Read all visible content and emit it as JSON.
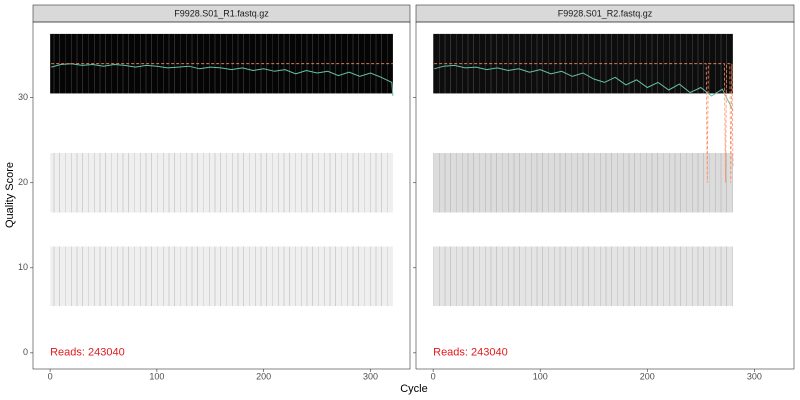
{
  "chart_data": [
    {
      "type": "line",
      "title": "F9928.S01_R1.fastq.gz",
      "x_label": "Cycle",
      "y_label": "Quality Score",
      "annotation": "Reads:  243040",
      "xlim": [
        -16,
        337
      ],
      "ylim": [
        -1.9,
        38.9
      ],
      "xticks": [
        0,
        100,
        200,
        300
      ],
      "yticks": [
        0,
        10,
        20,
        30
      ],
      "grid": false,
      "heatmap": [
        {
          "range": [
            30.5,
            37.5
          ],
          "color": "#050505"
        },
        {
          "range": [
            16.5,
            23.5
          ],
          "color": "#efefef"
        },
        {
          "range": [
            5.5,
            12.5
          ],
          "color": "#efefef"
        }
      ],
      "series": [
        {
          "color": "#66c2a5",
          "dashed": false,
          "x": [
            1,
            10,
            20,
            30,
            40,
            50,
            60,
            70,
            80,
            90,
            100,
            110,
            120,
            130,
            140,
            150,
            160,
            170,
            180,
            190,
            200,
            210,
            220,
            230,
            240,
            250,
            260,
            270,
            280,
            290,
            300,
            310,
            320,
            321
          ],
          "values": [
            33.6,
            33.9,
            34.0,
            33.8,
            33.9,
            33.7,
            33.9,
            33.8,
            33.6,
            33.8,
            33.7,
            33.5,
            33.6,
            33.7,
            33.4,
            33.6,
            33.5,
            33.3,
            33.5,
            33.2,
            33.4,
            33.1,
            33.3,
            32.8,
            33.2,
            32.9,
            33.1,
            32.6,
            33.0,
            32.5,
            32.9,
            32.4,
            31.8,
            30.2
          ]
        },
        {
          "color": "#fc8d62",
          "dashed": true,
          "x": [
            1,
            321
          ],
          "values": [
            34,
            34
          ]
        }
      ]
    },
    {
      "type": "line",
      "title": "F9928.S01_R2.fastq.gz",
      "annotation": "Reads:  243040",
      "xlim": [
        -16,
        337
      ],
      "ylim": [
        -1.9,
        38.9
      ],
      "xticks": [
        0,
        100,
        200,
        300
      ],
      "yticks": [
        0,
        10,
        20,
        30
      ],
      "grid": false,
      "heatmap": [
        {
          "range": [
            30.5,
            37.5
          ],
          "color": "#0d0d0d"
        },
        {
          "range": [
            16.5,
            23.5
          ],
          "color": "#dcdcdc"
        },
        {
          "range": [
            5.5,
            12.5
          ],
          "color": "#e4e4e4"
        }
      ],
      "series": [
        {
          "color": "#66c2a5",
          "dashed": false,
          "x": [
            1,
            10,
            20,
            30,
            40,
            50,
            60,
            70,
            80,
            90,
            100,
            110,
            120,
            130,
            140,
            150,
            160,
            170,
            180,
            190,
            200,
            210,
            220,
            230,
            240,
            250,
            260,
            270,
            280
          ],
          "values": [
            33.4,
            33.7,
            33.8,
            33.5,
            33.6,
            33.3,
            33.5,
            33.2,
            33.4,
            33.0,
            33.3,
            32.8,
            33.1,
            32.5,
            32.9,
            32.2,
            31.8,
            32.4,
            31.5,
            32.1,
            31.2,
            31.8,
            30.9,
            31.6,
            30.6,
            31.2,
            30.2,
            31.0,
            28.5
          ]
        },
        {
          "color": "#fc8d62",
          "dashed": true,
          "x": [
            1,
            255,
            256,
            257,
            272,
            273,
            274,
            277,
            278,
            279,
            280
          ],
          "values": [
            34,
            34,
            20,
            34,
            34,
            20,
            34,
            34,
            20,
            34,
            22
          ]
        }
      ]
    }
  ]
}
